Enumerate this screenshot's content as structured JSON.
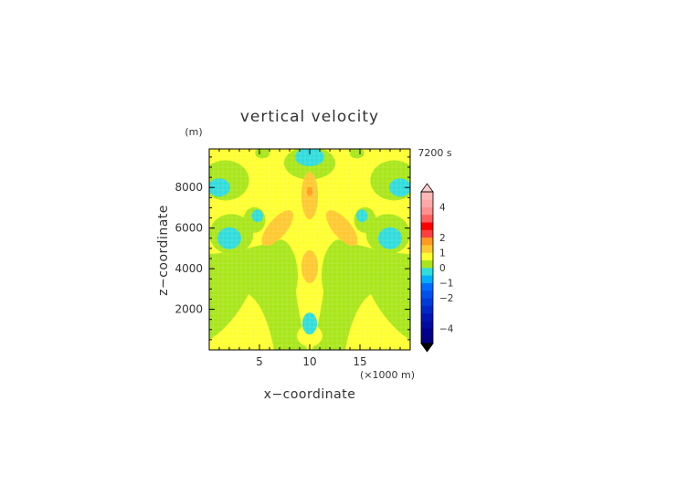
{
  "chart_data": {
    "type": "heatmap",
    "title": "vertical velocity",
    "xlabel": "x−coordinate",
    "ylabel": "z−coordinate",
    "y_unit": "(m)",
    "x_unit": "(×1000 m)",
    "time_label": "7200 s",
    "xlim": [
      0,
      20
    ],
    "ylim": [
      0,
      9900
    ],
    "x_ticks": [
      5,
      10,
      15
    ],
    "x_tick_labels": [
      "5",
      "10",
      "15"
    ],
    "y_ticks": [
      2000,
      4000,
      6000,
      8000
    ],
    "y_tick_labels": [
      "2000",
      "4000",
      "6000",
      "8000"
    ],
    "colorbar": {
      "label_values": [
        "4",
        "2",
        "1",
        "0",
        "−1",
        "−2",
        "−4"
      ],
      "levels": [
        -5,
        -4.5,
        -4,
        -3.5,
        -3,
        -2.5,
        -2,
        -1.5,
        -1,
        -0.5,
        0,
        0.5,
        1,
        1.5,
        2,
        2.5,
        3,
        3.5,
        4,
        4.5,
        5
      ],
      "colors": [
        "#000080",
        "#00008c",
        "#000aa0",
        "#0014b4",
        "#0028c8",
        "#003cdc",
        "#0050f0",
        "#006cff",
        "#00b0ff",
        "#30dcdc",
        "#a8e61a",
        "#ffff30",
        "#ffc830",
        "#ff9a20",
        "#ff4040",
        "#ff0000",
        "#ff6060",
        "#ff9090",
        "#ffa8a8",
        "#ffb8b8"
      ],
      "extend_top_color": "#ffcccc",
      "extend_bottom_color": "#000000"
    },
    "grid": false
  }
}
